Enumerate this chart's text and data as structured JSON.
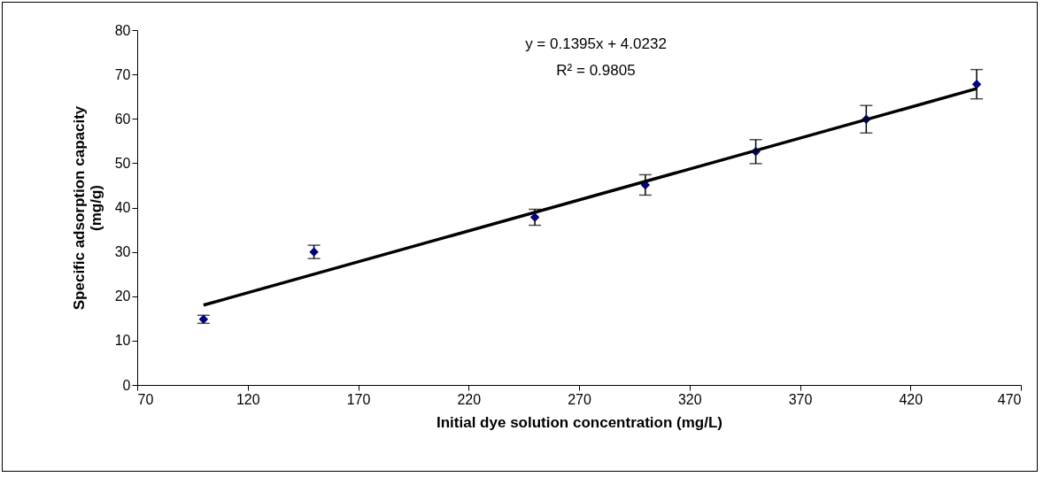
{
  "chart_data": {
    "type": "scatter",
    "xlabel": "Initial dye solution concentration (mg/L)",
    "ylabel": "Specific adsorption capacity (mg/g)",
    "x": [
      100,
      150,
      250,
      300,
      350,
      400,
      450
    ],
    "series": [
      {
        "color": "#000080",
        "marker": "diamond",
        "values": [
          14.8,
          30.0,
          37.8,
          45.1,
          52.6,
          59.9,
          67.8
        ],
        "errors": [
          0.9,
          1.5,
          1.8,
          2.3,
          2.7,
          3.1,
          3.3
        ]
      },
      {
        "type": "line",
        "color": "#000000",
        "x": [
          100,
          450
        ],
        "values": [
          18.0,
          66.8
        ]
      }
    ],
    "annotations": [
      "y = 0.1395x + 4.0232",
      "R² = 0.9805"
    ],
    "xlim": [
      70,
      470
    ],
    "xticks": [
      70,
      120,
      170,
      220,
      270,
      320,
      370,
      420,
      470
    ],
    "ylim": [
      0,
      80
    ],
    "yticks": [
      0,
      10,
      20,
      30,
      40,
      50,
      60,
      70,
      80
    ],
    "grid": false
  }
}
